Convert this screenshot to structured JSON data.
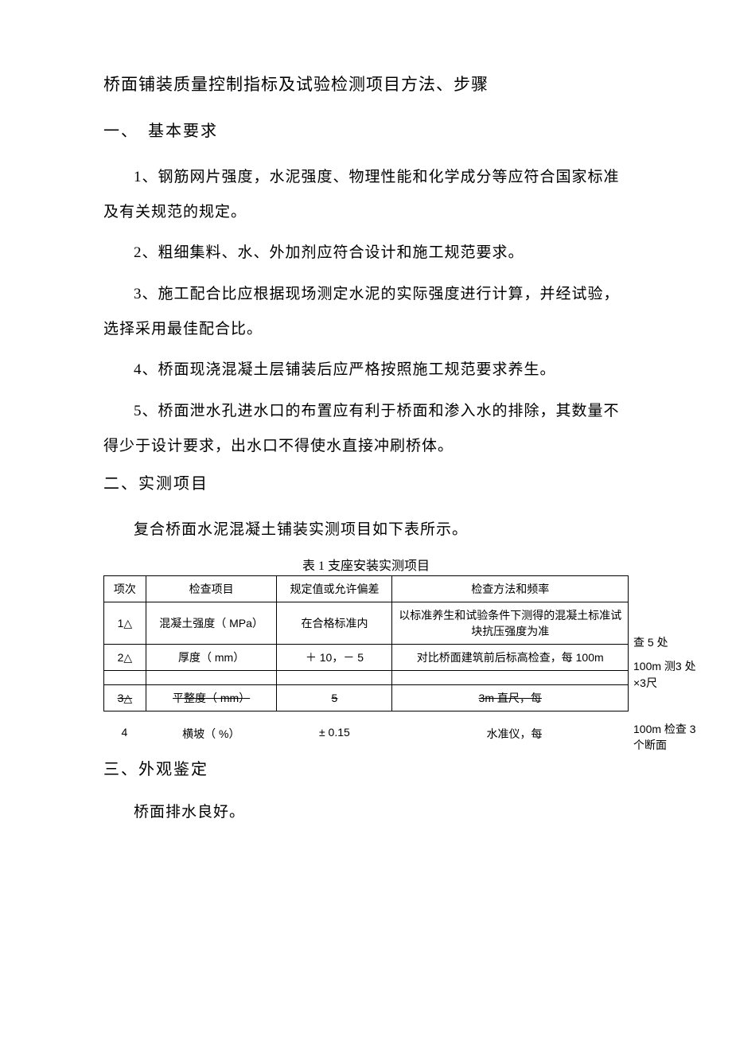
{
  "title": "桥面铺装质量控制指标及试验检测项目方法、步骤",
  "section1": {
    "heading": "一、　基本要求",
    "paras": [
      "1、钢筋网片强度，水泥强度、物理性能和化学成分等应符合国家标准及有关规范的规定。",
      "2、粗细集料、水、外加剂应符合设计和施工规范要求。",
      "3、施工配合比应根据现场测定水泥的实际强度进行计算，并经试验，选择采用最佳配合比。",
      "4、桥面现浇混凝土层铺装后应严格按照施工规范要求养生。",
      "5、桥面泄水孔进水口的布置应有利于桥面和渗入水的排除，其数量不得少于设计要求，出水口不得使水直接冲刷桥体。"
    ]
  },
  "section2": {
    "heading": "二、实测项目",
    "intro": "复合桥面水泥混凝土铺装实测项目如下表所示。",
    "table_caption": "表 1 支座安装实测项目",
    "table": {
      "headers": [
        "项次",
        "检查项目",
        "规定值或允许偏差",
        "检查方法和频率"
      ],
      "rows": [
        {
          "idx": "1△",
          "item": "混凝土强度（ MPa）",
          "spec": "在合格标准内",
          "method": "以标准养生和试验条件下测得的混凝土标准试块抗压强度为准",
          "overflow": ""
        },
        {
          "idx": "2△",
          "item": "厚度（ mm）",
          "spec": "＋ 10，－ 5",
          "method": "对比桥面建筑前后标高检查，每 100m",
          "overflow": "查 5 处"
        },
        {
          "idx": "3△",
          "item": "平整度（ mm）",
          "spec": "5",
          "method": "3m 直尺，每",
          "overflow": "100m 测3 处×3尺",
          "strike": true
        }
      ],
      "extra_row": {
        "idx": "4",
        "item": "横坡（ %）",
        "spec": "± 0.15",
        "method": "水准仪，每",
        "overflow": "100m 检查 3 个断面"
      }
    }
  },
  "section3": {
    "heading": "三、外观鉴定",
    "para": "桥面排水良好。"
  }
}
